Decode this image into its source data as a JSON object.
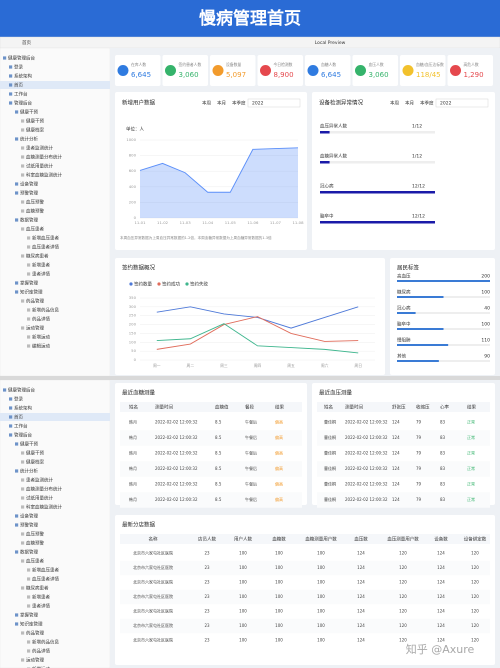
{
  "header": {
    "title": "慢病管理首页"
  },
  "browser": {
    "tab": "首页",
    "address": "Local Preview"
  },
  "sidebar": {
    "items": [
      "健康管理后台",
      "登录",
      "系统架构",
      "首页",
      "工作台",
      "管理后台",
      "健康干预",
      "健康干预",
      "健康档案",
      "统计分析",
      "患者监测统计",
      "血糖测量分布统计",
      "试纸用量统计",
      "科室血糖监测统计",
      "设备管理",
      "预警管理",
      "血压预警",
      "血糖预警",
      "数据管理",
      "血压患者",
      "新增血压患者",
      "血压患者详情",
      "糖尿病患者",
      "新增患者",
      "患者详情",
      "掌握管理",
      "知识库管理",
      "药品管理",
      "新增药品信息",
      "药品详情",
      "运动管理",
      "新增运动",
      "编辑运动"
    ]
  },
  "stats": [
    {
      "label": "在库人数",
      "value": "6,645",
      "color": "#2f7be0"
    },
    {
      "label": "签约患者人数",
      "value": "3,060",
      "color": "#35b36b"
    },
    {
      "label": "设备数量",
      "value": "5,097",
      "color": "#f29b2c"
    },
    {
      "label": "今日检测数",
      "value": "8,900",
      "color": "#e5484d"
    },
    {
      "label": "血糖人数",
      "value": "6,645",
      "color": "#2f7be0"
    },
    {
      "label": "血压人数",
      "value": "3,060",
      "color": "#35b36b"
    },
    {
      "label": "血糖/血压达标数",
      "value": "118/45",
      "color": "#f2c12c"
    },
    {
      "label": "高危人数",
      "value": "1,290",
      "color": "#e5484d"
    }
  ],
  "new_users": {
    "title": "新增用户数据",
    "tabs": [
      "本周",
      "本月",
      "本季度"
    ],
    "select": "2022",
    "chart": {
      "type": "area",
      "unit": "单位：人",
      "categories": [
        "11-01",
        "11-02",
        "11-03",
        "11-04",
        "11-05",
        "11-06",
        "11-07",
        "11-08"
      ],
      "values": [
        610,
        700,
        580,
        330,
        330,
        880,
        890,
        900
      ],
      "ylim": [
        0,
        1000
      ],
      "yticks": [
        0,
        200,
        400,
        600,
        800,
        1000
      ],
      "color": "#5b8ff9",
      "grid": true
    },
    "note": "本周血压异常数据为上周血压异常数据的1.2倍，本周血糖异常数据为上周血糖异常数据的1.3倍"
  },
  "devices": {
    "title": "设备检测异常情况",
    "tabs": [
      "本周",
      "本月",
      "本季度"
    ],
    "select": "2022",
    "color": "#1a1aa8",
    "items": [
      {
        "label": "血压异常人数",
        "value": "1/12"
      },
      {
        "label": "血糖异常人数",
        "value": "1/12"
      },
      {
        "label": "冠心病",
        "value": "12/12"
      },
      {
        "label": "脑卒中",
        "value": "12/12"
      }
    ]
  },
  "signing": {
    "title": "签约数据概况",
    "chart": {
      "type": "line",
      "categories": [
        "周一",
        "周二",
        "周三",
        "周四",
        "周五",
        "周六",
        "周日"
      ],
      "series": [
        {
          "name": "签约数量",
          "color": "#4e79d8",
          "values": [
            270,
            300,
            260,
            240,
            180,
            240,
            300
          ]
        },
        {
          "name": "签约成功",
          "color": "#e06c5b",
          "values": [
            60,
            90,
            200,
            245,
            150,
            105,
            110
          ]
        },
        {
          "name": "签约失败",
          "color": "#3fb68e",
          "values": [
            110,
            120,
            205,
            80,
            70,
            60,
            40
          ]
        }
      ],
      "ylim": [
        0,
        350
      ],
      "yticks": [
        0,
        50,
        100,
        150,
        200,
        250,
        300,
        350
      ],
      "grid": true
    }
  },
  "tags": {
    "title": "居民标签",
    "color": "#3a7bd5",
    "items": [
      {
        "label": "高血压",
        "value": 200
      },
      {
        "label": "糖尿病",
        "value": 100
      },
      {
        "label": "冠心病",
        "value": 40
      },
      {
        "label": "脑卒中",
        "value": 100
      },
      {
        "label": "慢阻肺",
        "value": 110
      },
      {
        "label": "其他",
        "value": 90
      }
    ]
  },
  "glucose": {
    "title": "最近血糖测量",
    "columns": [
      "姓名",
      "测量时间",
      "血糖值",
      "餐段",
      "结果"
    ],
    "rows": [
      [
        "韩月",
        "2022-02-02 12:00:32",
        8.5,
        "午餐后",
        "偏高"
      ],
      [
        "韩月",
        "2022-02-02 12:00:32",
        8.5,
        "午餐后",
        "偏高"
      ],
      [
        "韩月",
        "2022-02-02 12:00:32",
        8.5,
        "午餐后",
        "偏高"
      ],
      [
        "韩月",
        "2022-02-02 12:00:32",
        8.5,
        "午餐后",
        "偏高"
      ],
      [
        "韩月",
        "2022-02-02 12:00:32",
        8.5,
        "午餐后",
        "偏高"
      ],
      [
        "韩月",
        "2022-02-02 12:00:32",
        8.5,
        "午餐后",
        "偏高"
      ]
    ]
  },
  "pressure": {
    "title": "最近血压测量",
    "columns": [
      "姓名",
      "测量时间",
      "舒张压",
      "收缩压",
      "心率",
      "结果"
    ],
    "rows": [
      [
        "曹佳桐",
        "2022-02-02 12:00:32",
        124,
        79,
        83,
        "正常"
      ],
      [
        "曹佳桐",
        "2022-02-02 12:00:32",
        124,
        79,
        83,
        "正常"
      ],
      [
        "曹佳桐",
        "2022-02-02 12:00:32",
        124,
        79,
        83,
        "正常"
      ],
      [
        "曹佳桐",
        "2022-02-02 12:00:32",
        124,
        79,
        83,
        "正常"
      ],
      [
        "曹佳桐",
        "2022-02-02 12:00:32",
        124,
        79,
        83,
        "正常"
      ],
      [
        "曹佳桐",
        "2022-02-02 12:00:32",
        124,
        79,
        83,
        "正常"
      ]
    ]
  },
  "branches": {
    "title": "最新分店数据",
    "columns": [
      "名称",
      "店员人数",
      "用户人数",
      "血糖数",
      "血糖测量用户数",
      "血压数",
      "血压测量用户数",
      "设备数",
      "设备绑定数"
    ],
    "rows": [
      [
        "北京市六家屯社区医院",
        23,
        100,
        100,
        100,
        124,
        120,
        124,
        120
      ],
      [
        "北京市六家屯社区医院",
        23,
        100,
        100,
        100,
        124,
        120,
        124,
        120
      ],
      [
        "北京市六家屯社区医院",
        23,
        100,
        100,
        100,
        124,
        120,
        124,
        120
      ],
      [
        "北京市六家屯社区医院",
        23,
        100,
        100,
        100,
        124,
        120,
        124,
        120
      ],
      [
        "北京市六家屯社区医院",
        23,
        100,
        100,
        100,
        124,
        120,
        124,
        120
      ],
      [
        "北京市六家屯社区医院",
        23,
        100,
        100,
        100,
        124,
        120,
        124,
        120
      ],
      [
        "北京市六家屯社区医院",
        23,
        100,
        100,
        100,
        124,
        120,
        124,
        120
      ]
    ]
  },
  "watermark": "知乎 @Axure"
}
